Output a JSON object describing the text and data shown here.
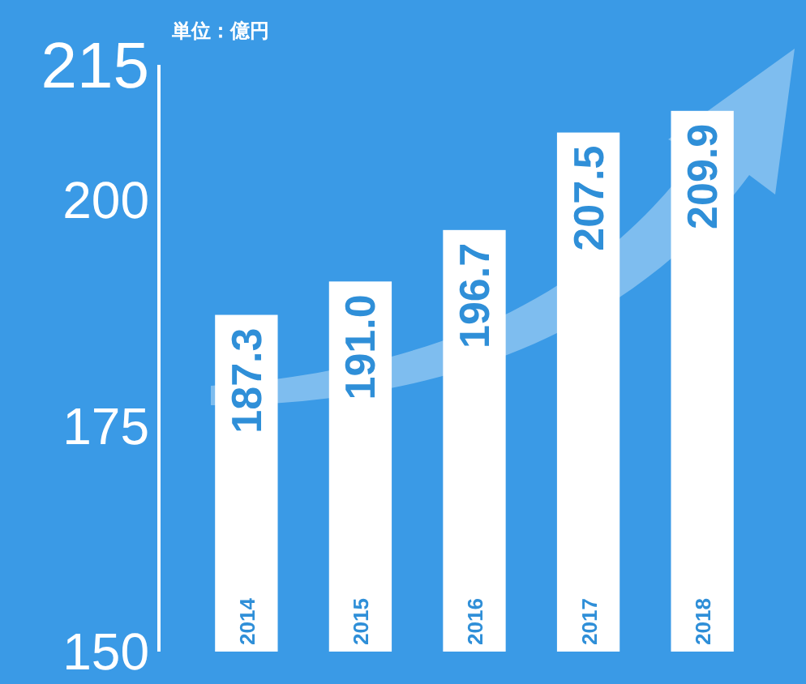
{
  "chart_data": {
    "type": "bar",
    "ylabel": "単位：億円",
    "categories": [
      "2014",
      "2015",
      "2016",
      "2017",
      "2018"
    ],
    "values": [
      187.3,
      191.0,
      196.7,
      207.5,
      209.9
    ],
    "value_labels": [
      "187.3",
      "191.0",
      "196.7",
      "207.5",
      "209.9"
    ],
    "color": "#ffffff",
    "ylim": [
      150,
      215
    ],
    "yticks": [
      150,
      175,
      200,
      215
    ],
    "grid": false
  }
}
